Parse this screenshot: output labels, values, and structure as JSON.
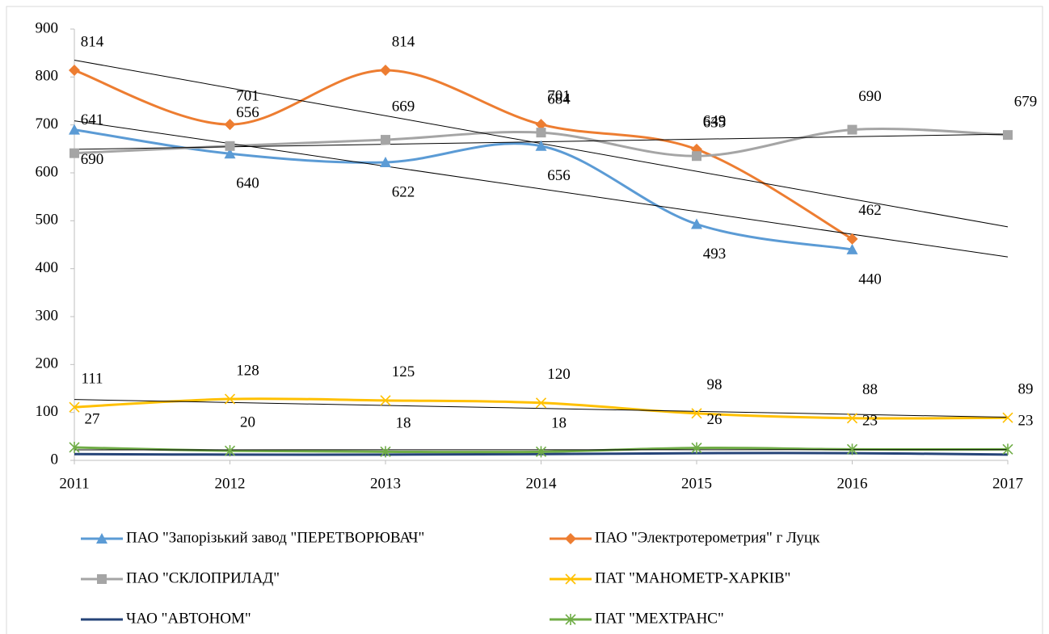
{
  "chart_data": {
    "type": "line",
    "smooth": true,
    "categories": [
      "2011",
      "2012",
      "2013",
      "2014",
      "2015",
      "2016",
      "2017"
    ],
    "ylim": [
      0,
      900
    ],
    "yticks": [
      0,
      100,
      200,
      300,
      400,
      500,
      600,
      700,
      800,
      900
    ],
    "legend": "bottom",
    "series": [
      {
        "name": "ПАО \"Запорізький завод \"ПЕРЕТВОРЮВАЧ\"",
        "color": "#5b9bd5",
        "marker": "triangle",
        "trendline": true,
        "data_labels": true,
        "values": [
          690,
          640,
          622,
          656,
          493,
          440,
          null
        ]
      },
      {
        "name": "ПАО \"Электротерометрия\" г Луцк",
        "color": "#ed7d31",
        "marker": "diamond",
        "trendline": true,
        "data_labels": true,
        "values": [
          814,
          701,
          814,
          701,
          649,
          462,
          null
        ]
      },
      {
        "name": "ПАО \"СКЛОПРИЛАД\"",
        "color": "#a5a5a5",
        "marker": "square",
        "trendline": true,
        "data_labels": true,
        "values": [
          641,
          656,
          669,
          684,
          635,
          690,
          679
        ]
      },
      {
        "name": "ПАТ \"МАНОМЕТР-ХАРКІВ\"",
        "color": "#ffc000",
        "marker": "x",
        "trendline": true,
        "data_labels": true,
        "values": [
          111,
          128,
          125,
          120,
          98,
          88,
          89
        ]
      },
      {
        "name": "ЧАО \"АВТОНОМ\"",
        "color": "#264478",
        "marker": "none",
        "trendline": false,
        "data_labels": false,
        "values": [
          13,
          12,
          12,
          13,
          15,
          15,
          12
        ]
      },
      {
        "name": "ПАТ \"МЕХТРАНС\"",
        "color": "#70ad47",
        "marker": "star",
        "trendline": true,
        "data_labels": true,
        "values": [
          27,
          20,
          18,
          18,
          26,
          23,
          23
        ]
      }
    ]
  }
}
